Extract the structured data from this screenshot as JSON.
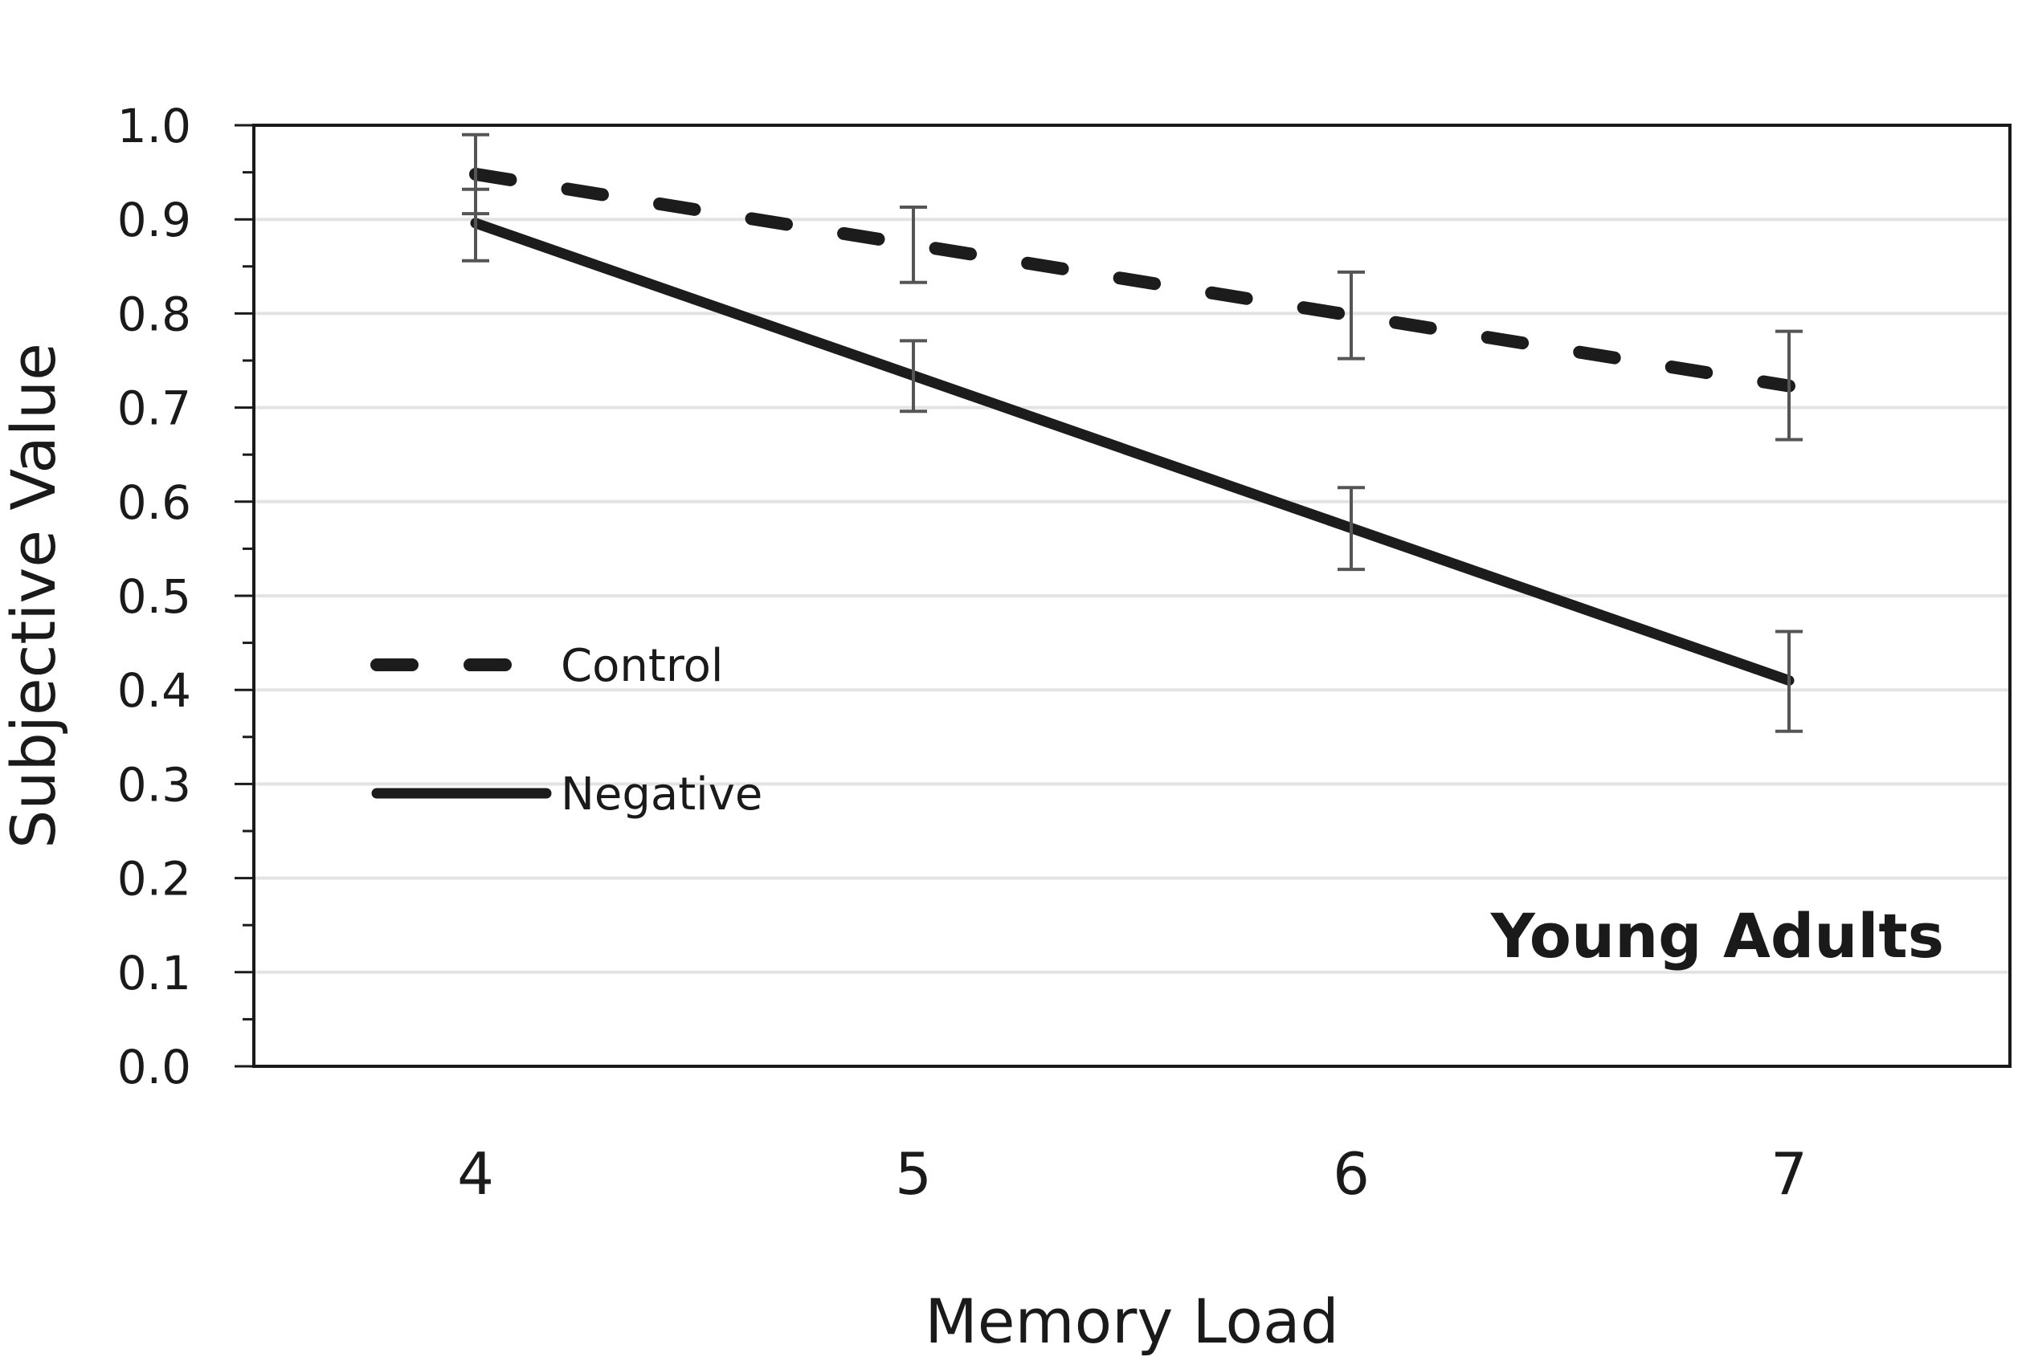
{
  "chart_data": {
    "type": "line",
    "xlabel": "Memory Load",
    "ylabel": "Subjective Value",
    "annotation": "Young Adults",
    "x": [
      4,
      5,
      6,
      7
    ],
    "x_tick_labels": [
      "4",
      "5",
      "6",
      "7"
    ],
    "y_tick_labels": [
      "0.0",
      "0.1",
      "0.2",
      "0.3",
      "0.4",
      "0.5",
      "0.6",
      "0.7",
      "0.8",
      "0.9",
      "1.0"
    ],
    "ylim": [
      0,
      1
    ],
    "grid": true,
    "legend_position": "center-left",
    "series": [
      {
        "name": "Control",
        "style": "dashed",
        "values": [
          0.948,
          0.873,
          0.798,
          0.723
        ],
        "error_low": [
          0.906,
          0.833,
          0.752,
          0.666
        ],
        "error_high": [
          0.99,
          0.913,
          0.844,
          0.781
        ]
      },
      {
        "name": "Negative",
        "style": "solid",
        "values": [
          0.896,
          0.734,
          0.572,
          0.41
        ],
        "error_low": [
          0.856,
          0.696,
          0.528,
          0.356
        ],
        "error_high": [
          0.932,
          0.771,
          0.615,
          0.462
        ]
      }
    ],
    "colors": {
      "line": "#1c1c1c",
      "error_bar": "#555555",
      "grid": "#e3e3e3",
      "axis": "#1a1a1a"
    }
  }
}
